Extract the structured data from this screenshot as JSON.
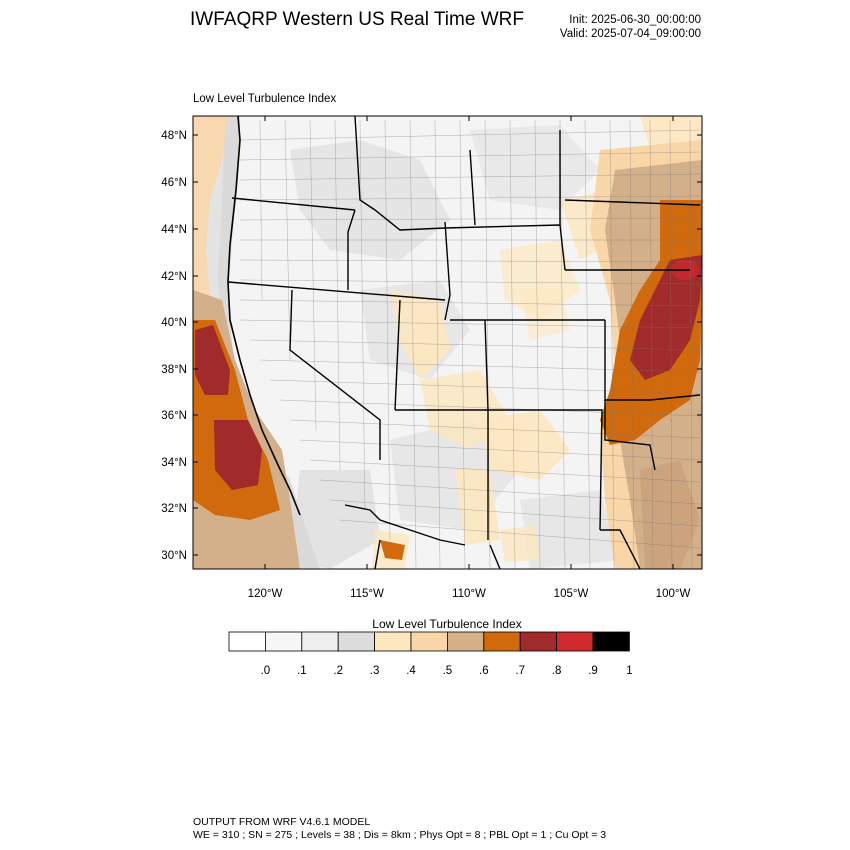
{
  "header": {
    "title": "IWFAQRP Western US Real Time WRF",
    "init": "Init: 2025-06-30_00:00:00",
    "valid": "Valid: 2025-07-04_09:00:00"
  },
  "map": {
    "subtitle": "Low Level Turbulence Index",
    "lat_labels": [
      "48°N",
      "46°N",
      "44°N",
      "42°N",
      "40°N",
      "38°N",
      "36°N",
      "34°N",
      "32°N",
      "30°N"
    ],
    "lon_labels": [
      "120°W",
      "115°W",
      "110°W",
      "105°W",
      "100°W"
    ]
  },
  "colorbar": {
    "title": "Low Level Turbulence Index",
    "labels": [
      ".0",
      ".1",
      ".2",
      ".3",
      ".4",
      ".5",
      ".6",
      ".7",
      ".8",
      ".9",
      "1"
    ],
    "colors": [
      "#ffffff",
      "#f7f7f7",
      "#efefef",
      "#dcdcdc",
      "#fde7bf",
      "#f8d6a8",
      "#d3b08a",
      "#d06a0c",
      "#a12a2a",
      "#d12a2e",
      "#000000"
    ]
  },
  "footer": {
    "line1": "OUTPUT FROM WRF V4.6.1 MODEL",
    "line2": "WE = 310 ; SN = 275 ; Levels = 38 ; Dis = 8km ; Phys Opt = 8 ; PBL Opt = 1 ; Cu Opt = 3"
  }
}
